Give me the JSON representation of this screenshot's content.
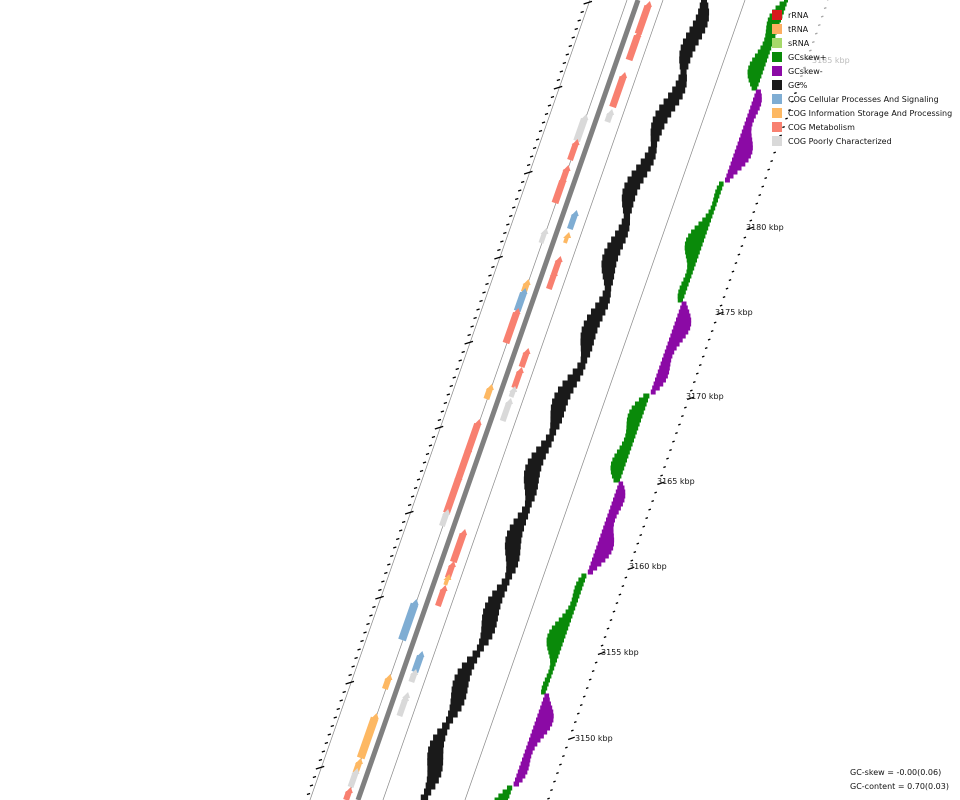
{
  "legend": [
    {
      "label": "rRNA",
      "color": "#d7191c"
    },
    {
      "label": "tRNA",
      "color": "#fdae61"
    },
    {
      "label": "sRNA",
      "color": "#a6d96a"
    },
    {
      "label": "GCskew+",
      "color": "#0a8a0a"
    },
    {
      "label": "GCskew-",
      "color": "#8b0aa5"
    },
    {
      "label": "GC%",
      "color": "#1a1a1a"
    },
    {
      "label": "COG Cellular Processes And Signaling",
      "color": "#7fadd3"
    },
    {
      "label": "COG Information Storage And Processing",
      "color": "#fdb863"
    },
    {
      "label": "COG Metabolism",
      "color": "#f88070"
    },
    {
      "label": "COG Poorly Characterized",
      "color": "#d9d9d9"
    }
  ],
  "ticks": [
    {
      "label": "3150 kbp"
    },
    {
      "label": "3155 kbp"
    },
    {
      "label": "3160 kbp"
    },
    {
      "label": "3165 kbp"
    },
    {
      "label": "3170 kbp"
    },
    {
      "label": "3175 kbp"
    },
    {
      "label": "3180 kbp"
    },
    {
      "label": "3185 kbp"
    }
  ],
  "stats": {
    "gc_skew": "GC-skew = -0.00(0.06)",
    "gc_content": "GC-content = 0.70(0.03)"
  },
  "colors": {
    "backbone": "#808080",
    "guide_line": "#888888",
    "tick": "#000000"
  }
}
